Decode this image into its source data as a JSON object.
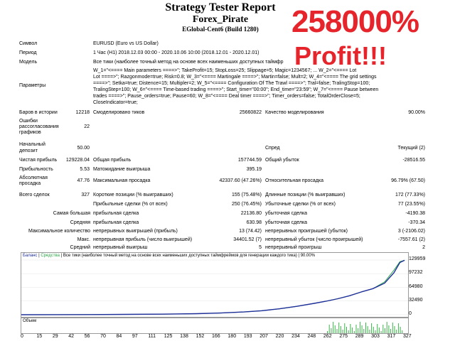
{
  "header": {
    "title": "Strategy Tester Report",
    "ea": "Forex_Pirate",
    "server": "EGlobal-Cent6 (Build 1280)"
  },
  "promo": {
    "line1": "258000%",
    "line2": "Profit!!!"
  },
  "rows": {
    "symbol_l": "Символ",
    "symbol_v": "EURUSD (Euro vs US Dollar)",
    "period_l": "Период",
    "period_v": "1 Час (H1) 2018.12.03 00:00 - 2020.10.06 10:00 (2018.12.01 - 2020.12.01)",
    "model_l": "Модель",
    "model_v": "Все тики (наиболее точный метод на основе всех наименьших доступных таймфр",
    "params_l": "Параметры",
    "params_1": "W_1=\"<==== Main parameters ====>\"; TakeProfit=15; StopLoss=25; Slippage=5; Magic=1234567; ... W_2=\"<==== Lot",
    "params_2": "Lot ====>\"; Razgonmode=true; Risk=0.8; W_3=\"<==== Martingale ====>\"; Martin=false; Mult=2; W_4=\"<==== The grid settings",
    "params_3": "====>\"; Setka=true; Distence=15; Multipler=2; W_5=\"<==== Configuration Of The Trawl ====>\"; Tral=false; TralingStop=100;",
    "params_4": "TralingStep=100; W_6=\"<==== Time-based trading ====>\"; Start_time=\"00:00\"; End_time=\"23:59\"; W_7=\"<==== Pause between",
    "params_5": "trades ====>\"; Pause_orders=true; Pause=60; W_8=\"<==== Deal timer ====>\"; Timer_orders=false; TotalOrderClose=5;",
    "params_6": "CloseIndicator=true;",
    "bars_l": "Баров в истории",
    "bars_v": "12218",
    "ticks_l": "Смоделировано тиков",
    "ticks_v": "25660822",
    "quality_l": "Качество моделирования",
    "quality_v": "90.00%",
    "errors_l1": "Ошибки",
    "errors_l2": "рассогласования",
    "errors_l3": "графиков",
    "errors_v": "22",
    "deposit_l1": "Начальный",
    "deposit_l2": "депозит",
    "deposit_v": "50.00",
    "spread_l": "Спред",
    "spread_v": "Текущий (2)",
    "netprofit_l": "Чистая прибыль",
    "netprofit_v": "129228.04",
    "grossprofit_l": "Общая прибыль",
    "grossprofit_v": "157744.59",
    "grossloss_l": "Общий убыток",
    "grossloss_v": "-28516.55",
    "pf_l": "Прибыльность",
    "pf_v": "5.53",
    "payoff_l": "Матожидание выигрыша",
    "payoff_v": "395.19",
    "absdd_l1": "Абсолютная",
    "absdd_l2": "просадка",
    "absdd_v": "47.76",
    "maxdd_l": "Максимальная просадка",
    "maxdd_v": "42337.60 (47.26%)",
    "reldd_l": "Относительная просадка",
    "reldd_v": "96.79% (67.50)",
    "trades_l": "Всего сделок",
    "trades_v": "327",
    "short_l": "Короткие позиции (% выигравших)",
    "short_v": "155 (75.48%)",
    "long_l": "Длинные позиции (% выигравших)",
    "long_v": "172 (77.33%)",
    "profitt_l": "Прибыльные сделки (% от всех)",
    "profitt_v": "250 (76.45%)",
    "losst_l": "Убыточные сделки (% от всех)",
    "losst_v": "77 (23.55%)",
    "largest_l": "Самая большая",
    "lp_l": "прибыльная сделка",
    "lp_v": "22136.80",
    "ll_l": "убыточная сделка",
    "ll_v": "-4190.38",
    "avg_l": "Средняя",
    "ap_l": "прибыльная сделка",
    "ap_v": "630.98",
    "al_l": "убыточная сделка",
    "al_v": "-370.34",
    "maxcount_l": "Максимальное количество",
    "mcw_l": "непрерывных выигрышей (прибыль)",
    "mcw_v": "13 (74.42)",
    "mcl_l": "непрерывных проигрышей (убыток)",
    "mcl_v": "3 (-2106.02)",
    "max_l": "Макс.",
    "mxp_l": "непрерывная прибыль (число выигрышей)",
    "mxp_v": "34401.52 (7)",
    "mxl_l": "непрерывный убыток (число проигрышей)",
    "mxl_v": "-7557.61 (2)",
    "avgc_l": "Средний",
    "acw_l": "непрерывный выигрыш",
    "acw_v": "5",
    "acl_l": "непрерывный проигрыш",
    "acl_v": "2"
  },
  "chart": {
    "legend_balance": "Баланс",
    "legend_equity": "Средства",
    "legend_text": "Все тики (наиболее точный метод на основе всех наименьших доступных таймфреймов для генерации каждого тика)",
    "legend_quality": "90.00%",
    "volume_label": "Объем",
    "colors": {
      "balance": "#1f2f9a",
      "equity": "#2fa64a",
      "volume": "#3cb54a"
    }
  },
  "chart_data": {
    "type": "line",
    "yticks": [
      "129959",
      "97232",
      "64980",
      "32490",
      "0"
    ],
    "ylim": [
      0,
      129959
    ],
    "xticks": [
      "0",
      "15",
      "29",
      "42",
      "56",
      "70",
      "84",
      "97",
      "111",
      "125",
      "138",
      "152",
      "166",
      "180",
      "193",
      "207",
      "220",
      "234",
      "248",
      "262",
      "275",
      "289",
      "303",
      "317",
      "327"
    ],
    "xlim": [
      0,
      330
    ],
    "series": [
      {
        "name": "Баланс",
        "x": [
          0,
          30,
          60,
          90,
          120,
          150,
          170,
          190,
          205,
          220,
          235,
          250,
          260,
          270,
          280,
          290,
          300,
          310,
          318,
          323,
          327
        ],
        "y": [
          50,
          150,
          400,
          800,
          1400,
          2600,
          4000,
          6500,
          9500,
          14000,
          20000,
          27000,
          32000,
          38000,
          45000,
          54000,
          62000,
          75000,
          100000,
          124000,
          129278
        ]
      },
      {
        "name": "Средства",
        "x": [
          0,
          30,
          60,
          90,
          120,
          150,
          170,
          190,
          205,
          220,
          235,
          250,
          260,
          270,
          280,
          290,
          300,
          310,
          318,
          323,
          327
        ],
        "y": [
          50,
          150,
          400,
          800,
          1400,
          2600,
          4000,
          6500,
          9500,
          14000,
          20000,
          27000,
          32000,
          38000,
          45000,
          54000,
          62000,
          78000,
          106000,
          126000,
          129278
        ]
      }
    ]
  }
}
